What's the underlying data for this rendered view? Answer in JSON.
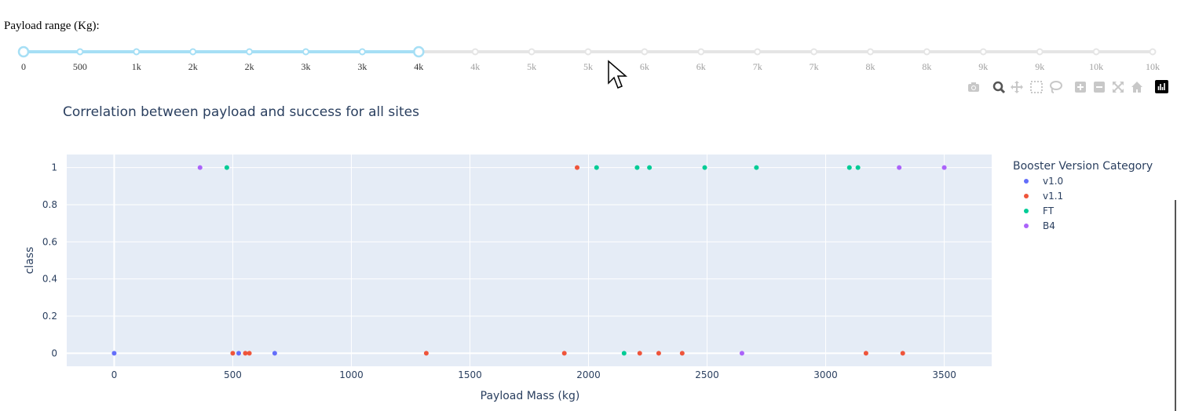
{
  "slider": {
    "label": "Payload range (Kg):",
    "ticks": [
      "0",
      "500",
      "1k",
      "2k",
      "2k",
      "3k",
      "3k",
      "4k",
      "4k",
      "5k",
      "5k",
      "6k",
      "6k",
      "7k",
      "7k",
      "8k",
      "8k",
      "9k",
      "9k",
      "10k",
      "10k"
    ],
    "selected_start_index": 0,
    "selected_end_index": 7,
    "active_color": "#a6dff5",
    "inactive_color": "#e5e5e5"
  },
  "modebar": {
    "buttons": [
      "camera-icon",
      "zoom-icon",
      "pan-icon",
      "box-select-icon",
      "lasso-select-icon",
      "zoom-in-icon",
      "zoom-out-icon",
      "autoscale-icon",
      "reset-axes-icon",
      "plotly-logo-icon"
    ]
  },
  "chart_data": {
    "type": "scatter",
    "title": "Correlation between payload and success for all sites",
    "xlabel": "Payload Mass (kg)",
    "ylabel": "class",
    "xlim": [
      -200,
      3700
    ],
    "ylim": [
      -0.07,
      1.07
    ],
    "xticks": [
      0,
      500,
      1000,
      1500,
      2000,
      2500,
      3000,
      3500
    ],
    "yticks": [
      0,
      0.2,
      0.4,
      0.6,
      0.8,
      1
    ],
    "grid": true,
    "legend_title": "Booster Version Category",
    "legend_position": "right",
    "series": [
      {
        "name": "v1.0",
        "color": "#636efa",
        "x": [
          0,
          525,
          677
        ],
        "y": [
          0,
          0,
          0
        ]
      },
      {
        "name": "v1.1",
        "color": "#ef553b",
        "x": [
          500,
          553,
          570,
          1316,
          1898,
          1952,
          2216,
          2296,
          2395,
          3170,
          3325
        ],
        "y": [
          0,
          0,
          0,
          0,
          0,
          1,
          0,
          0,
          0,
          0,
          0
        ]
      },
      {
        "name": "FT",
        "color": "#00cc96",
        "x": [
          475,
          2034,
          2150,
          2205,
          2257,
          2490,
          2708,
          3100,
          3136
        ],
        "y": [
          1,
          1,
          0,
          1,
          1,
          1,
          1,
          1,
          1
        ]
      },
      {
        "name": "B4",
        "color": "#ab63fa",
        "x": [
          362,
          2647,
          3310,
          3500
        ],
        "y": [
          1,
          0,
          1,
          1
        ]
      }
    ]
  }
}
